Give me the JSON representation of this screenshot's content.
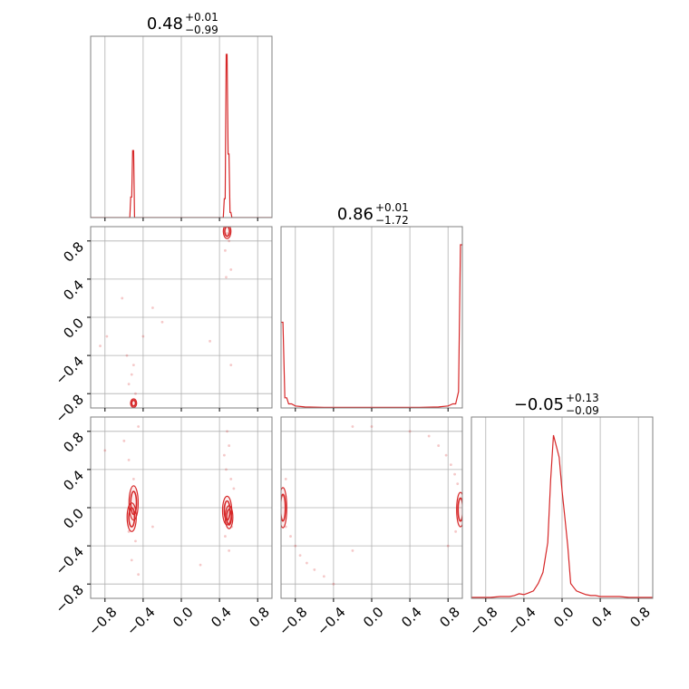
{
  "chart_data": {
    "type": "corner",
    "params": 3,
    "axis_range": [
      -0.95,
      0.95
    ],
    "ticks": [
      -0.8,
      -0.4,
      0.0,
      0.4,
      0.8
    ],
    "tick_labels": [
      "−0.8",
      "−0.4",
      "0.0",
      "0.4",
      "0.8"
    ],
    "grid": true,
    "color": "#d62728",
    "grid_color": "#b0b0b0",
    "titles": [
      {
        "value": "0.48",
        "plus": "+0.01",
        "minus": "−0.99"
      },
      {
        "value": "0.86",
        "plus": "+0.01",
        "minus": "−1.72"
      },
      {
        "value": "−0.05",
        "plus": "+0.13",
        "minus": "−0.09"
      }
    ],
    "histograms": [
      {
        "param": 0,
        "x": [
          -0.95,
          -0.55,
          -0.54,
          -0.53,
          -0.52,
          -0.51,
          -0.5,
          -0.49,
          -0.48,
          -0.47,
          -0.46,
          -0.45,
          -0.44,
          -0.43,
          -0.42,
          0.41,
          0.42,
          0.43,
          0.44,
          0.45,
          0.46,
          0.47,
          0.48,
          0.49,
          0.5,
          0.51,
          0.52,
          0.53,
          0.54,
          0.55,
          0.56,
          0.95
        ],
        "y": [
          0,
          0,
          0,
          0.12,
          0.12,
          0.39,
          0.39,
          0,
          0,
          0,
          0,
          0,
          0,
          0,
          0,
          0,
          0,
          0,
          0,
          0.11,
          0.11,
          0.95,
          0.95,
          0.37,
          0.37,
          0.03,
          0.03,
          0,
          0,
          0,
          0,
          0
        ]
      },
      {
        "param": 1,
        "x": [
          -0.95,
          -0.93,
          -0.91,
          -0.89,
          -0.87,
          -0.84,
          -0.8,
          -0.7,
          -0.5,
          0,
          0.5,
          0.7,
          0.8,
          0.85,
          0.88,
          0.91,
          0.93,
          0.95
        ],
        "y": [
          0.42,
          0.42,
          0.05,
          0.05,
          0.02,
          0.02,
          0.01,
          0.005,
          0.003,
          0.003,
          0.003,
          0.005,
          0.01,
          0.02,
          0.02,
          0.08,
          0.8,
          0.8
        ]
      },
      {
        "param": 2,
        "x": [
          -0.95,
          -0.85,
          -0.75,
          -0.65,
          -0.55,
          -0.5,
          -0.45,
          -0.4,
          -0.35,
          -0.3,
          -0.25,
          -0.2,
          -0.15,
          -0.12,
          -0.09,
          -0.06,
          -0.03,
          0.0,
          0.03,
          0.06,
          0.09,
          0.12,
          0.15,
          0.2,
          0.25,
          0.3,
          0.35,
          0.4,
          0.5,
          0.6,
          0.7,
          0.8,
          0.9,
          0.95
        ],
        "y": [
          0.005,
          0.005,
          0.005,
          0.01,
          0.01,
          0.015,
          0.025,
          0.02,
          0.03,
          0.04,
          0.08,
          0.14,
          0.3,
          0.64,
          0.88,
          0.82,
          0.76,
          0.58,
          0.43,
          0.28,
          0.08,
          0.06,
          0.04,
          0.03,
          0.02,
          0.015,
          0.015,
          0.01,
          0.01,
          0.01,
          0.005,
          0.005,
          0.005,
          0.005
        ]
      }
    ],
    "contours": [
      {
        "row": 1,
        "col": 0,
        "blobs": [
          [
            0.48,
            0.9,
            0.025,
            0.05
          ],
          [
            -0.5,
            -0.9,
            0.02,
            0.03
          ]
        ]
      },
      {
        "row": 2,
        "col": 0,
        "blobs": [
          [
            -0.5,
            0.05,
            0.03,
            0.12
          ],
          [
            -0.52,
            -0.1,
            0.03,
            0.1
          ],
          [
            0.48,
            -0.03,
            0.03,
            0.1
          ],
          [
            0.5,
            -0.1,
            0.025,
            0.08
          ]
        ]
      },
      {
        "row": 2,
        "col": 1,
        "blobs": [
          [
            -0.93,
            0.0,
            0.025,
            0.14
          ],
          [
            0.93,
            -0.02,
            0.025,
            0.12
          ]
        ]
      }
    ],
    "scatter": [
      {
        "row": 1,
        "col": 0,
        "points": [
          [
            0.48,
            0.88
          ],
          [
            0.5,
            0.8
          ],
          [
            0.46,
            0.7
          ],
          [
            0.52,
            0.5
          ],
          [
            0.47,
            0.42
          ],
          [
            -0.55,
            -0.7
          ],
          [
            -0.52,
            -0.6
          ],
          [
            -0.5,
            -0.5
          ],
          [
            -0.57,
            -0.4
          ],
          [
            -0.48,
            -0.8
          ],
          [
            -0.78,
            -0.2
          ],
          [
            -0.3,
            0.1
          ],
          [
            -0.2,
            -0.05
          ],
          [
            0.3,
            -0.25
          ],
          [
            0.52,
            -0.5
          ],
          [
            -0.85,
            -0.3
          ],
          [
            -0.4,
            -0.2
          ],
          [
            -0.62,
            0.2
          ]
        ]
      },
      {
        "row": 2,
        "col": 0,
        "points": [
          [
            -0.5,
            0.3
          ],
          [
            -0.55,
            0.5
          ],
          [
            -0.48,
            -0.35
          ],
          [
            -0.52,
            -0.55
          ],
          [
            -0.45,
            -0.7
          ],
          [
            0.48,
            0.8
          ],
          [
            0.5,
            0.65
          ],
          [
            0.47,
            0.4
          ],
          [
            0.52,
            0.3
          ],
          [
            0.46,
            -0.3
          ],
          [
            0.5,
            -0.45
          ],
          [
            0.55,
            0.2
          ],
          [
            -0.8,
            0.6
          ],
          [
            -0.45,
            0.85
          ],
          [
            -0.3,
            -0.2
          ],
          [
            0.2,
            -0.6
          ],
          [
            -0.55,
            -0.25
          ],
          [
            0.45,
            0.55
          ],
          [
            -0.6,
            0.7
          ],
          [
            0.53,
            -0.2
          ]
        ]
      },
      {
        "row": 2,
        "col": 1,
        "points": [
          [
            -0.9,
            -0.2
          ],
          [
            -0.85,
            -0.3
          ],
          [
            -0.8,
            -0.4
          ],
          [
            -0.75,
            -0.5
          ],
          [
            -0.68,
            -0.58
          ],
          [
            -0.6,
            -0.65
          ],
          [
            -0.5,
            -0.72
          ],
          [
            -0.4,
            -0.8
          ],
          [
            -0.9,
            0.3
          ],
          [
            -0.2,
            0.85
          ],
          [
            0.0,
            0.85
          ],
          [
            0.4,
            0.8
          ],
          [
            0.6,
            0.75
          ],
          [
            0.7,
            0.65
          ],
          [
            0.78,
            0.55
          ],
          [
            0.83,
            0.45
          ],
          [
            0.87,
            0.35
          ],
          [
            0.9,
            0.25
          ],
          [
            0.88,
            -0.25
          ],
          [
            0.8,
            -0.4
          ],
          [
            -0.2,
            -0.45
          ],
          [
            -0.92,
            0.12
          ]
        ]
      }
    ]
  }
}
